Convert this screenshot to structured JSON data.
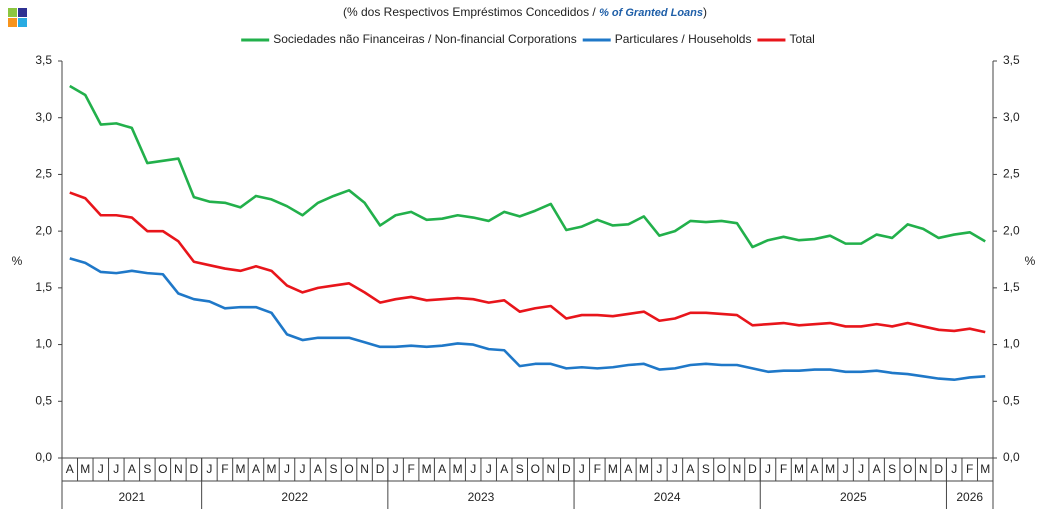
{
  "chart_data": {
    "type": "line",
    "title": [
      "(% dos Respectivos  Empréstimos Concedidos / ",
      "% of Granted Loans",
      ")"
    ],
    "y_label": "%",
    "categories": [
      "A",
      "M",
      "J",
      "J",
      "A",
      "S",
      "O",
      "N",
      "D",
      "J",
      "F",
      "M",
      "A",
      "M",
      "J",
      "J",
      "A",
      "S",
      "O",
      "N",
      "D",
      "J",
      "F",
      "M",
      "A",
      "M",
      "J",
      "J",
      "A",
      "S",
      "O",
      "N",
      "D",
      "J",
      "F",
      "M",
      "A",
      "M",
      "J",
      "J",
      "A",
      "S",
      "O",
      "N",
      "D",
      "J",
      "F",
      "M",
      "A",
      "M",
      "J",
      "J",
      "A",
      "S",
      "O",
      "N",
      "D",
      "J",
      "F",
      "M"
    ],
    "years": [
      "2021",
      "2022",
      "2023",
      "2024",
      "2025",
      "2026"
    ],
    "series": [
      {
        "name": "Sociedades não Financeiras / Non-financial Corporations",
        "color": "#22b04b",
        "values": [
          3.28,
          3.2,
          2.94,
          2.95,
          2.91,
          2.6,
          2.62,
          2.64,
          2.3,
          2.26,
          2.25,
          2.21,
          2.31,
          2.28,
          2.22,
          2.14,
          2.25,
          2.31,
          2.36,
          2.25,
          2.05,
          2.14,
          2.17,
          2.1,
          2.11,
          2.14,
          2.12,
          2.09,
          2.17,
          2.13,
          2.18,
          2.24,
          2.01,
          2.04,
          2.1,
          2.05,
          2.06,
          2.13,
          1.96,
          2.0,
          2.09,
          2.08,
          2.09,
          2.07,
          1.86,
          1.92,
          1.95,
          1.92,
          1.93,
          1.96,
          1.89,
          1.89,
          1.97,
          1.94,
          2.06,
          2.02,
          1.94,
          1.97,
          1.99,
          1.91
        ]
      },
      {
        "name": "Particulares / Households",
        "color": "#1f78c8",
        "values": [
          1.76,
          1.72,
          1.64,
          1.63,
          1.65,
          1.63,
          1.62,
          1.45,
          1.4,
          1.38,
          1.32,
          1.33,
          1.33,
          1.28,
          1.09,
          1.04,
          1.06,
          1.06,
          1.06,
          1.02,
          0.98,
          0.98,
          0.99,
          0.98,
          0.99,
          1.01,
          1.0,
          0.96,
          0.95,
          0.81,
          0.83,
          0.83,
          0.79,
          0.8,
          0.79,
          0.8,
          0.82,
          0.83,
          0.78,
          0.79,
          0.82,
          0.83,
          0.82,
          0.82,
          0.79,
          0.76,
          0.77,
          0.77,
          0.78,
          0.78,
          0.76,
          0.76,
          0.77,
          0.75,
          0.74,
          0.72,
          0.7,
          0.69,
          0.71,
          0.72
        ]
      },
      {
        "name": "Total",
        "color": "#e8151b",
        "values": [
          2.34,
          2.29,
          2.14,
          2.14,
          2.12,
          2.0,
          2.0,
          1.91,
          1.73,
          1.7,
          1.67,
          1.65,
          1.69,
          1.65,
          1.52,
          1.46,
          1.5,
          1.52,
          1.54,
          1.46,
          1.37,
          1.4,
          1.42,
          1.39,
          1.4,
          1.41,
          1.4,
          1.37,
          1.39,
          1.29,
          1.32,
          1.34,
          1.23,
          1.26,
          1.26,
          1.25,
          1.27,
          1.29,
          1.21,
          1.23,
          1.28,
          1.28,
          1.27,
          1.26,
          1.17,
          1.18,
          1.19,
          1.17,
          1.18,
          1.19,
          1.16,
          1.16,
          1.18,
          1.16,
          1.19,
          1.16,
          1.13,
          1.12,
          1.14,
          1.11
        ]
      }
    ],
    "ylim": [
      0,
      3.5
    ],
    "yticks": [
      {
        "value": 0,
        "label": "0,0"
      },
      {
        "value": 0.5,
        "label": "0,5"
      },
      {
        "value": 1,
        "label": "1,0"
      },
      {
        "value": 1.5,
        "label": "1,5"
      },
      {
        "value": 2,
        "label": "2,0"
      },
      {
        "value": 2.5,
        "label": "2,5"
      },
      {
        "value": 3,
        "label": "3,0"
      },
      {
        "value": 3.5,
        "label": "3,5"
      }
    ],
    "y2lim": [
      0,
      3.5
    ],
    "y2ticks": [
      {
        "value": 0,
        "label": "0,0"
      },
      {
        "value": 0.5,
        "label": "0,5"
      },
      {
        "value": 1,
        "label": "1,0"
      },
      {
        "value": 1.5,
        "label": "1,5"
      },
      {
        "value": 2,
        "label": "2,0"
      },
      {
        "value": 2.5,
        "label": "2,5"
      },
      {
        "value": 3,
        "label": "3,0"
      },
      {
        "value": 3.5,
        "label": "3,5"
      }
    ],
    "grid": false,
    "legend": "top"
  }
}
